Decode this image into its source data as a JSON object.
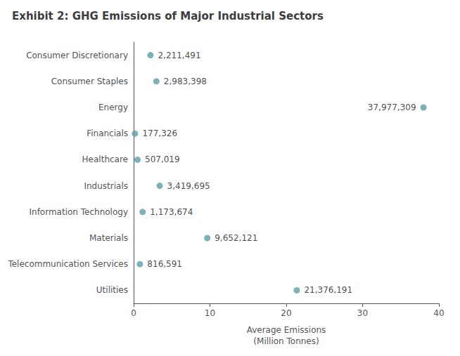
{
  "chart_data": {
    "type": "scatter",
    "title": "Exhibit 2: GHG Emissions of Major Industrial Sectors",
    "categories": [
      "Consumer Discretionary",
      "Consumer Staples",
      "Energy",
      "Financials",
      "Healthcare",
      "Industrials",
      "Information Technology",
      "Materials",
      "Telecommunication Services",
      "Utilities"
    ],
    "values": [
      2.211491,
      2.983398,
      37.977309,
      0.177326,
      0.507019,
      3.419695,
      1.173674,
      9.652121,
      0.816591,
      21.376191
    ],
    "value_labels": [
      "2,211,491",
      "2,983,398",
      "37,977,309",
      "177,326",
      "507,019",
      "3,419,695",
      "1,173,674",
      "9,652,121",
      "816,591",
      "21,376,191"
    ],
    "data_labels": true,
    "color": "#5b9ea6",
    "xlabel": "Average Emissions\n(Million Tonnes)",
    "xlim": [
      0,
      40
    ],
    "xticks": [
      0,
      10,
      20,
      30,
      40
    ],
    "grid": false
  }
}
